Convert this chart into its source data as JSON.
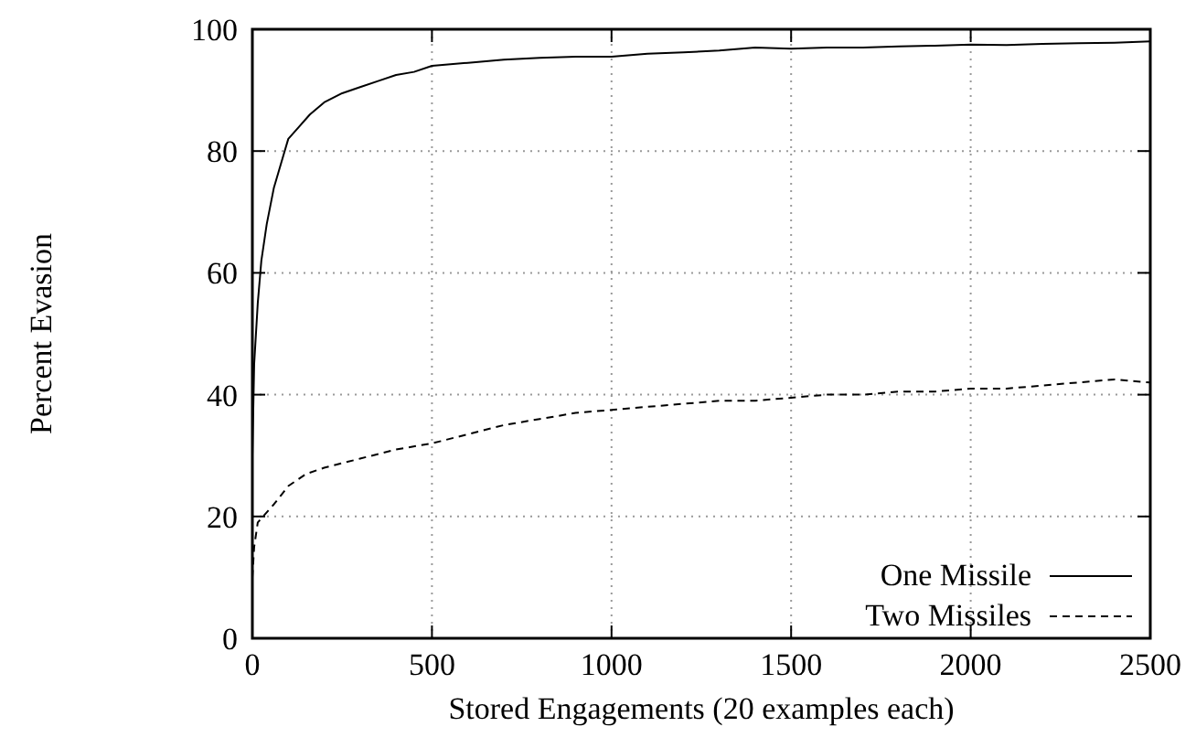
{
  "chart_data": {
    "type": "line",
    "xlabel": "Stored Engagements (20 examples each)",
    "ylabel": "Percent Evasion",
    "xlim": [
      0,
      2500
    ],
    "xticks": [
      0,
      500,
      1000,
      1500,
      2000,
      2500
    ],
    "ylim": [
      0,
      100
    ],
    "yticks": [
      0,
      20,
      40,
      60,
      80,
      100
    ],
    "grid": true,
    "legend": "bottom right",
    "series": [
      {
        "name": "One Missile",
        "color": "#000000",
        "line_style": "solid",
        "x": [
          0,
          5,
          15,
          25,
          40,
          60,
          80,
          100,
          130,
          160,
          200,
          250,
          300,
          350,
          400,
          450,
          500,
          600,
          700,
          800,
          900,
          1000,
          1100,
          1200,
          1300,
          1400,
          1500,
          1600,
          1700,
          1800,
          1900,
          2000,
          2100,
          2200,
          2300,
          2400,
          2500
        ],
        "values": [
          30,
          45,
          55,
          62,
          68,
          74,
          78,
          82,
          84,
          86,
          88,
          89.5,
          90.5,
          91.5,
          92.5,
          93,
          94,
          94.5,
          95,
          95.3,
          95.5,
          95.5,
          96,
          96.2,
          96.5,
          97,
          96.8,
          97,
          97,
          97.2,
          97.3,
          97.5,
          97.4,
          97.6,
          97.7,
          97.8,
          98
        ]
      },
      {
        "name": "Two Missiles",
        "color": "#000000",
        "line_style": "dashed",
        "x": [
          0,
          5,
          15,
          30,
          60,
          100,
          150,
          200,
          300,
          400,
          500,
          600,
          700,
          800,
          900,
          1000,
          1100,
          1200,
          1300,
          1400,
          1500,
          1600,
          1700,
          1800,
          1900,
          2000,
          2100,
          2200,
          2300,
          2400,
          2500
        ],
        "values": [
          10,
          15,
          19,
          20,
          22,
          25,
          27,
          28,
          29.5,
          31,
          32,
          33.5,
          35,
          36,
          37,
          37.5,
          38,
          38.5,
          39,
          39,
          39.5,
          40,
          40,
          40.5,
          40.5,
          41,
          41,
          41.5,
          42,
          42.5,
          42
        ]
      }
    ]
  }
}
